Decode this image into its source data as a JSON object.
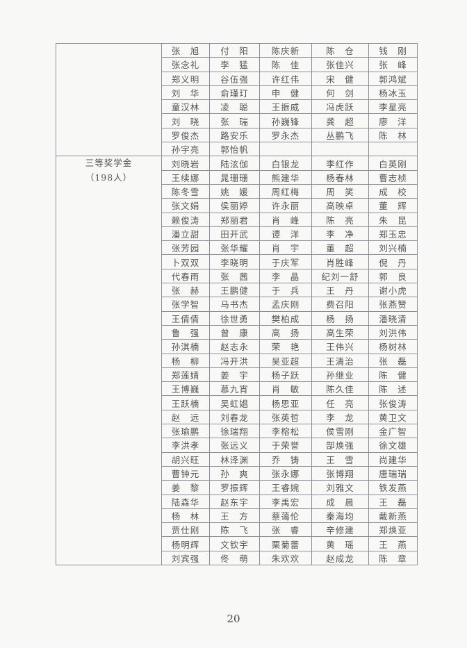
{
  "category": {
    "title": "三等奖学金",
    "count": "（198人）"
  },
  "rows_top": [
    [
      "张　旭",
      "付　阳",
      "陈庆新",
      "陈　仓",
      "钱　刚"
    ],
    [
      "张念礼",
      "李　猛",
      "陈　佳",
      "张佳兴",
      "张　峰"
    ],
    [
      "郑义明",
      "谷伍强",
      "许红伟",
      "宋　健",
      "郭鸿斌"
    ],
    [
      "刘　华",
      "俞瑾玎",
      "申　健",
      "何　剑",
      "杨冰玉"
    ],
    [
      "童汉林",
      "凌　聪",
      "王振威",
      "冯虎跃",
      "李星亮"
    ],
    [
      "刘　晓",
      "张　瑞",
      "孙巍锋",
      "龚　超",
      "廖　洋"
    ],
    [
      "罗俊杰",
      "路安乐",
      "罗永杰",
      "丛鹏飞",
      "陈　林"
    ],
    [
      "孙宇亮",
      "郭怡帆",
      "",
      "",
      ""
    ]
  ],
  "rows_main": [
    [
      "刘晓岩",
      "陆泫伽",
      "白银龙",
      "李红作",
      "白英刚"
    ],
    [
      "王续娜",
      "晁珊珊",
      "熊建华",
      "杨春林",
      "曹志桢"
    ],
    [
      "陈冬雪",
      "姚　媛",
      "周红梅",
      "周　笑",
      "成　校"
    ],
    [
      "张文娟",
      "侯丽婷",
      "许永丽",
      "高映卓",
      "董　辉"
    ],
    [
      "赖俊涛",
      "郑丽君",
      "肖　峰",
      "陈　亮",
      "朱　昆"
    ],
    [
      "潘立甜",
      "田开武",
      "谭　洋",
      "李　净",
      "郑玉忠"
    ],
    [
      "张芳园",
      "张华耀",
      "肖　宇",
      "董　超",
      "刘兴楠"
    ],
    [
      "卜双双",
      "李晓明",
      "于庆军",
      "肖胜峰",
      "倪　丹"
    ],
    [
      "代春雨",
      "张　茜",
      "李　晶",
      "纪刘一舒",
      "郭　良"
    ],
    [
      "张　赫",
      "王鹏健",
      "于　兵",
      "王　丹",
      "谢小虎"
    ],
    [
      "张学智",
      "马书杰",
      "孟庆刚",
      "费召阳",
      "张燕赞"
    ],
    [
      "王倩倩",
      "徐世勇",
      "樊柏成",
      "杨　扬",
      "潘晓清"
    ],
    [
      "鲁　强",
      "曾　康",
      "高　扬",
      "高生荣",
      "刘洪伟"
    ],
    [
      "孙淇楠",
      "赵志永",
      "荣　艳",
      "王伟兴",
      "杨树林"
    ],
    [
      "杨　柳",
      "冯开洪",
      "吴亚超",
      "王清治",
      "张　磊"
    ],
    [
      "郑莲婧",
      "姜　宇",
      "杨子跃",
      "孙继业",
      "陈　健"
    ],
    [
      "王博巍",
      "慕九宵",
      "肖　敏",
      "陈久佳",
      "陈　述"
    ],
    [
      "王跃楠",
      "吴虹娼",
      "杨思亚",
      "任　亮",
      "张俊涛"
    ],
    [
      "赵　远",
      "刘春龙",
      "张英哲",
      "李　龙",
      "黄卫文"
    ],
    [
      "张瑜鹏",
      "徐瑞翔",
      "李榕松",
      "侯雪刚",
      "金广智"
    ],
    [
      "李洪孝",
      "张远义",
      "于荣誉",
      "郜焕强",
      "徐文雄"
    ],
    [
      "胡兴旺",
      "林泽渊",
      "乔　铸",
      "王　雪",
      "尚建华"
    ],
    [
      "曹钟元",
      "孙　爽",
      "张永娜",
      "张博翔",
      "唐瑞瑞"
    ],
    [
      "姜　黎",
      "罗振辉",
      "王睿婉",
      "刘雅文",
      "铁发燕"
    ],
    [
      "陆森华",
      "赵东宇",
      "李禹宏",
      "成　晨",
      "王　磊"
    ],
    [
      "杨　林",
      "王　方",
      "蔡蔼伦",
      "秦海均",
      "戴新燕"
    ],
    [
      "贾仕刚",
      "陈　飞",
      "张　睿",
      "辛修建",
      "郑焕亚"
    ],
    [
      "杨明辉",
      "文钦宇",
      "栗菊蕾",
      "黄　瑶",
      "王　燕"
    ],
    [
      "刘宾强",
      "佟　萌",
      "朱欢欢",
      "赵成龙",
      "陈　章"
    ]
  ],
  "page_number": "20"
}
